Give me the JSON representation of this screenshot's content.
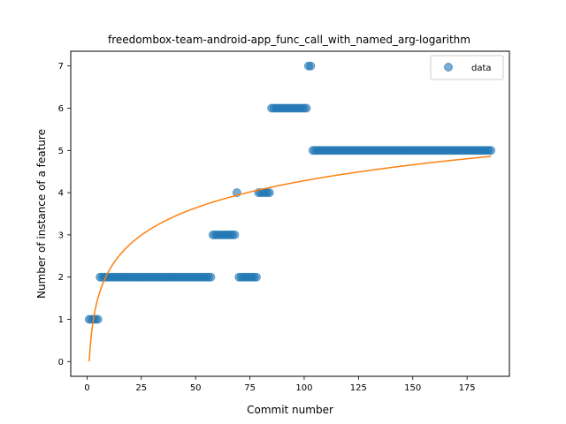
{
  "chart_data": {
    "type": "scatter",
    "title": "freedombox-team-android-app_func_call_with_named_arg-logarithm",
    "xlabel": "Commit number",
    "ylabel": "Number of instance of a feature",
    "xlim": [
      -7.5,
      194.5
    ],
    "ylim": [
      -0.35,
      7.35
    ],
    "xticks": [
      0,
      25,
      50,
      75,
      100,
      125,
      150,
      175
    ],
    "yticks": [
      0,
      1,
      2,
      3,
      4,
      5,
      6,
      7
    ],
    "grid": false,
    "legend": {
      "position": "top-right",
      "entries": [
        "data"
      ]
    },
    "colors": {
      "data": "#1f77b4",
      "fit": "#ff7f0e"
    },
    "series": [
      {
        "name": "data",
        "kind": "scatter",
        "segments": [
          {
            "x_start": 1,
            "x_end": 5,
            "y": 1
          },
          {
            "x_start": 6,
            "x_end": 57,
            "y": 2
          },
          {
            "x_start": 58,
            "x_end": 68,
            "y": 3
          },
          {
            "x_start": 69,
            "x_end": 69,
            "y": 4
          },
          {
            "x_start": 70,
            "x_end": 78,
            "y": 2
          },
          {
            "x_start": 79,
            "x_end": 84,
            "y": 4
          },
          {
            "x_start": 85,
            "x_end": 101,
            "y": 6
          },
          {
            "x_start": 102,
            "x_end": 103,
            "y": 7
          },
          {
            "x_start": 104,
            "x_end": 186,
            "y": 5
          }
        ]
      },
      {
        "kind": "line",
        "function": "a*ln(x)",
        "a": 0.93,
        "x_range": [
          1,
          186
        ]
      }
    ]
  }
}
